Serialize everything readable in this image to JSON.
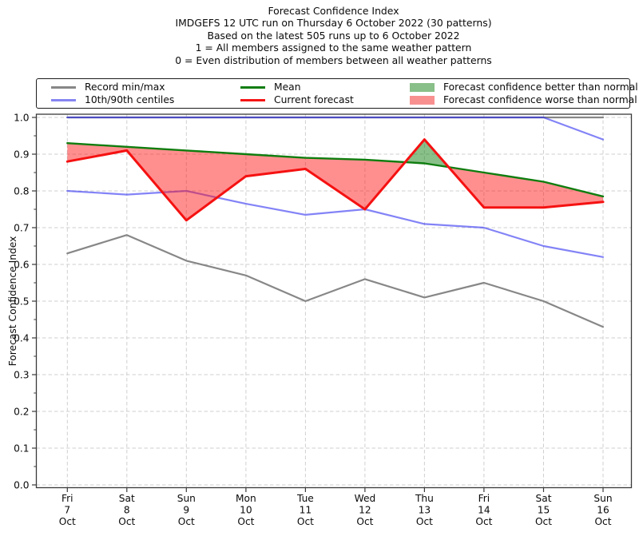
{
  "header": {
    "title": "Forecast Confidence Index",
    "subtitle_lines": [
      "IMDGEFS 12 UTC run on Thursday 6 October 2022 (30 patterns)",
      "Based on the latest 505 runs up to 6 October 2022",
      "1 = All members assigned to the same weather pattern",
      "0 = Even distribution of members between all weather patterns"
    ]
  },
  "legend": {
    "entries": [
      {
        "label": "Record min/max",
        "type": "line",
        "color": "#878787"
      },
      {
        "label": "10th/90th centiles",
        "type": "line",
        "color": "#8585f2"
      },
      {
        "label": "Mean",
        "type": "line",
        "color": "#0f7d0f"
      },
      {
        "label": "Current forecast",
        "type": "line",
        "color": "#f51515"
      },
      {
        "label": "Forecast confidence better than normal",
        "type": "patch",
        "color": "#89bf89"
      },
      {
        "label": "Forecast confidence worse than normal",
        "type": "patch",
        "color": "#f89090"
      }
    ]
  },
  "chart_data": {
    "type": "line",
    "title": "Forecast Confidence Index",
    "ylabel": "Forecast Confidence Index",
    "ylim": [
      0.0,
      1.0
    ],
    "yticks": [
      "0.0",
      "0.1",
      "0.2",
      "0.3",
      "0.4",
      "0.5",
      "0.6",
      "0.7",
      "0.8",
      "0.9",
      "1.0"
    ],
    "grid": true,
    "legend_position": "top",
    "categories": [
      {
        "day": "Fri",
        "date": "7",
        "month": "Oct"
      },
      {
        "day": "Sat",
        "date": "8",
        "month": "Oct"
      },
      {
        "day": "Sun",
        "date": "9",
        "month": "Oct"
      },
      {
        "day": "Mon",
        "date": "10",
        "month": "Oct"
      },
      {
        "day": "Tue",
        "date": "11",
        "month": "Oct"
      },
      {
        "day": "Wed",
        "date": "12",
        "month": "Oct"
      },
      {
        "day": "Thu",
        "date": "13",
        "month": "Oct"
      },
      {
        "day": "Fri",
        "date": "14",
        "month": "Oct"
      },
      {
        "day": "Sat",
        "date": "15",
        "month": "Oct"
      },
      {
        "day": "Sun",
        "date": "16",
        "month": "Oct"
      }
    ],
    "series": [
      {
        "key": "record_max",
        "name": "Record max",
        "color": "#878787",
        "values": [
          1.0,
          1.0,
          1.0,
          1.0,
          1.0,
          1.0,
          1.0,
          1.0,
          1.0,
          1.0
        ]
      },
      {
        "key": "record_min",
        "name": "Record min",
        "color": "#878787",
        "values": [
          0.63,
          0.68,
          0.61,
          0.57,
          0.5,
          0.56,
          0.51,
          0.55,
          0.5,
          0.43
        ]
      },
      {
        "key": "centile_90",
        "name": "90th centile",
        "color": "rgba(30,30,240,0.55)",
        "values": [
          1.0,
          1.0,
          1.0,
          1.0,
          1.0,
          1.0,
          1.0,
          1.0,
          1.0,
          0.94
        ]
      },
      {
        "key": "centile_10",
        "name": "10th centile",
        "color": "rgba(30,30,240,0.55)",
        "values": [
          0.8,
          0.79,
          0.8,
          0.765,
          0.735,
          0.75,
          0.71,
          0.7,
          0.65,
          0.62
        ]
      },
      {
        "key": "mean",
        "name": "Mean",
        "color": "#0f7d0f",
        "values": [
          0.93,
          0.92,
          0.91,
          0.9,
          0.89,
          0.885,
          0.875,
          0.85,
          0.825,
          0.785
        ]
      },
      {
        "key": "current",
        "name": "Current forecast",
        "color": "#f51111",
        "values": [
          0.88,
          0.91,
          0.72,
          0.84,
          0.86,
          0.75,
          0.94,
          0.755,
          0.755,
          0.77
        ]
      }
    ],
    "colors": {
      "grid": "#cfcfcf",
      "axis": "#3a3a3a",
      "fill_better": "rgba(20,128,20,0.5)",
      "fill_worse": "rgba(255,20,20,0.48)"
    }
  }
}
